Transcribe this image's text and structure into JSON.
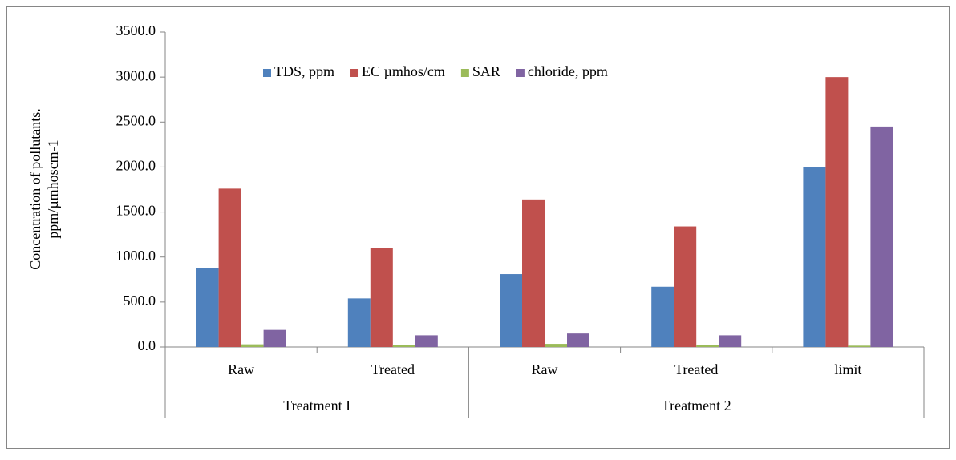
{
  "chart_data": {
    "type": "bar",
    "y_label": [
      "Concentration of pollutants.",
      "ppm/µmhoscm-1"
    ],
    "groups": [
      {
        "label": "Treatment I",
        "categories": [
          "Raw",
          "Treated"
        ]
      },
      {
        "label": "Treatment 2",
        "categories": [
          "Raw",
          "Treated",
          "limit"
        ]
      }
    ],
    "series": [
      {
        "name": "TDS, ppm",
        "color": "#4f81bd",
        "values": [
          880,
          540,
          810,
          670,
          2000
        ]
      },
      {
        "name": "EC µmhos/cm",
        "color": "#c0504d",
        "values": [
          1760,
          1100,
          1640,
          1340,
          3000
        ]
      },
      {
        "name": "SAR",
        "color": "#9bbb59",
        "values": [
          30,
          25,
          35,
          25,
          15
        ]
      },
      {
        "name": "chloride, ppm",
        "color": "#8064a2",
        "values": [
          190,
          130,
          150,
          130,
          2450
        ]
      }
    ],
    "ylim": [
      0,
      3500
    ],
    "yticks": [
      {
        "value": 0,
        "label": "0.0"
      },
      {
        "value": 500,
        "label": "500.0"
      },
      {
        "value": 1000,
        "label": "1000.0"
      },
      {
        "value": 1500,
        "label": "1500.0"
      },
      {
        "value": 2000,
        "label": "2000.0"
      },
      {
        "value": 2500,
        "label": "2500.0"
      },
      {
        "value": 3000,
        "label": "3000.0"
      },
      {
        "value": 3500,
        "label": "3500.0"
      }
    ],
    "grid": false,
    "legend": "top"
  }
}
